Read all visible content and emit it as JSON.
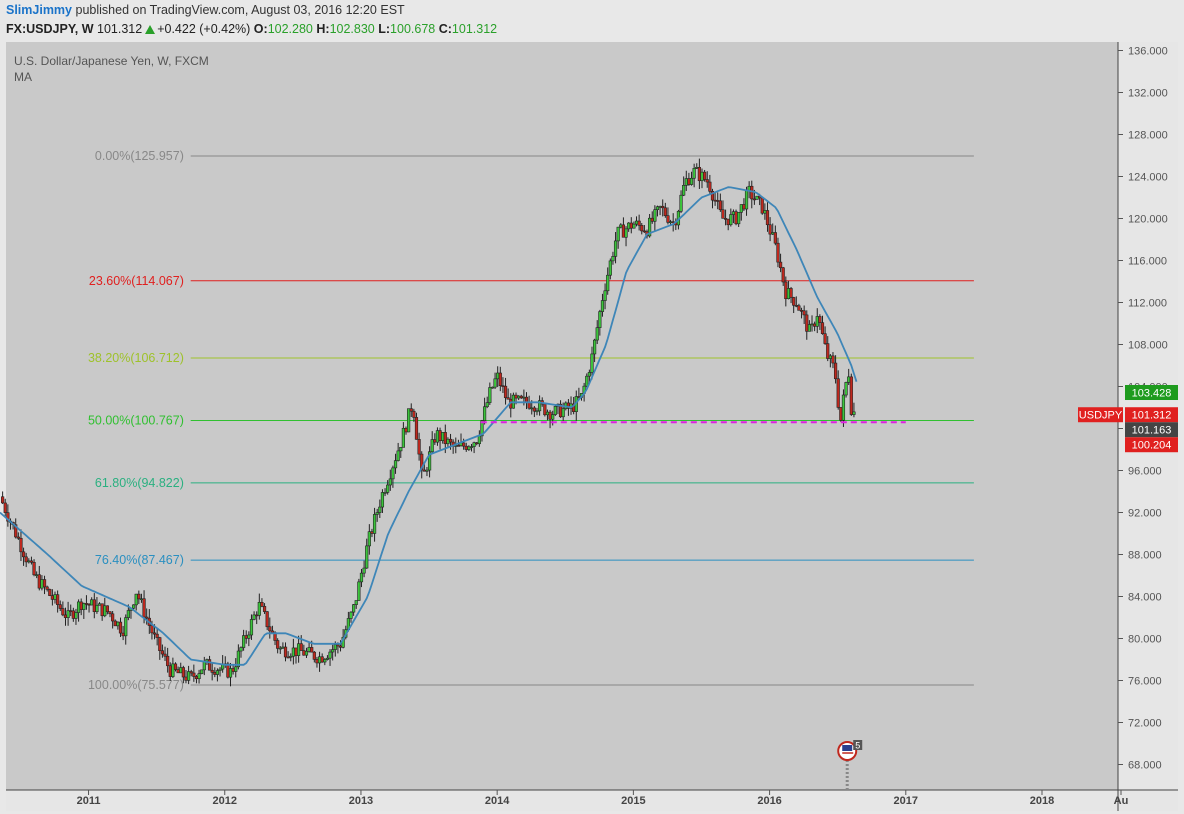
{
  "header": {
    "author": "SlimJimmy",
    "published_text": "published on TradingView.com, August 03, 2016 12:20 EST",
    "symbol": "FX:USDJPY, W",
    "last": "101.312",
    "change": "+0.422 (+0.42%)",
    "open_label": "O:",
    "open": "102.280",
    "high_label": "H:",
    "high": "102.830",
    "low_label": "L:",
    "low": "100.678",
    "close_label": "C:",
    "close": "101.312"
  },
  "chart_data": {
    "type": "candlestick",
    "title": "U.S. Dollar/Japanese Yen, W, FXCM",
    "indicator": "MA",
    "y_ticks": [
      "136.000",
      "132.000",
      "128.000",
      "124.000",
      "120.000",
      "116.000",
      "112.000",
      "108.000",
      "104.000",
      "100.000",
      "96.000",
      "92.000",
      "88.000",
      "84.000",
      "80.000",
      "76.000",
      "72.000",
      "68.000"
    ],
    "ylim": [
      66.2,
      138.2
    ],
    "x_ticks": [
      "2011",
      "2012",
      "2013",
      "2014",
      "2015",
      "2016",
      "2017",
      "2018",
      "Au"
    ],
    "fib_levels": [
      {
        "label": "0.00%(125.957)",
        "price": 125.957,
        "color": "#888888"
      },
      {
        "label": "23.60%(114.067)",
        "price": 114.067,
        "color": "#e0201f"
      },
      {
        "label": "38.20%(106.712)",
        "price": 106.712,
        "color": "#9ec22a"
      },
      {
        "label": "50.00%(100.767)",
        "price": 100.767,
        "color": "#30c030"
      },
      {
        "label": "61.80%(94.822)",
        "price": 94.822,
        "color": "#2ab080"
      },
      {
        "label": "76.40%(87.467)",
        "price": 87.467,
        "color": "#2a8fc0"
      },
      {
        "label": "100.00%(75.577)",
        "price": 75.577,
        "color": "#888888"
      }
    ],
    "support_line": {
      "price": 100.6,
      "color": "#e020e0",
      "style": "dashed"
    },
    "price_labels": [
      {
        "text": "103.428",
        "price": 103.428,
        "color": "#1e9b1e"
      },
      {
        "text": "101.312",
        "price": 101.312,
        "color": "#e0201f",
        "symbol": "USDJPY"
      },
      {
        "text": "101.163",
        "price": 101.163,
        "color": "#444444"
      },
      {
        "text": "100.204",
        "price": 100.204,
        "color": "#e0201f"
      }
    ],
    "price_waypoints": [
      [
        2010.35,
        93.5
      ],
      [
        2010.6,
        86
      ],
      [
        2010.85,
        82
      ],
      [
        2010.95,
        83.5
      ],
      [
        2011.15,
        82.5
      ],
      [
        2011.25,
        80.8
      ],
      [
        2011.35,
        84.5
      ],
      [
        2011.5,
        79.5
      ],
      [
        2011.6,
        77
      ],
      [
        2011.75,
        76.2
      ],
      [
        2011.85,
        77.5
      ],
      [
        2012.05,
        76.8
      ],
      [
        2012.15,
        80
      ],
      [
        2012.25,
        83.2
      ],
      [
        2012.4,
        79
      ],
      [
        2012.55,
        78.8
      ],
      [
        2012.7,
        78.2
      ],
      [
        2012.85,
        79.5
      ],
      [
        2012.95,
        83
      ],
      [
        2013.05,
        89
      ],
      [
        2013.15,
        93.5
      ],
      [
        2013.3,
        99
      ],
      [
        2013.38,
        102.5
      ],
      [
        2013.45,
        95
      ],
      [
        2013.55,
        99.5
      ],
      [
        2013.7,
        98
      ],
      [
        2013.85,
        99
      ],
      [
        2013.95,
        103.5
      ],
      [
        2014.0,
        105
      ],
      [
        2014.08,
        102.5
      ],
      [
        2014.25,
        102.5
      ],
      [
        2014.4,
        101.5
      ],
      [
        2014.55,
        102
      ],
      [
        2014.62,
        103
      ],
      [
        2014.7,
        107
      ],
      [
        2014.78,
        113
      ],
      [
        2014.88,
        118.5
      ],
      [
        2015.0,
        119.5
      ],
      [
        2015.1,
        119
      ],
      [
        2015.2,
        121
      ],
      [
        2015.3,
        119.5
      ],
      [
        2015.38,
        123.5
      ],
      [
        2015.45,
        124.5
      ],
      [
        2015.55,
        123.5
      ],
      [
        2015.65,
        120
      ],
      [
        2015.75,
        120
      ],
      [
        2015.85,
        122.5
      ],
      [
        2015.95,
        121
      ],
      [
        2016.05,
        117
      ],
      [
        2016.12,
        113
      ],
      [
        2016.2,
        112
      ],
      [
        2016.3,
        109
      ],
      [
        2016.35,
        111
      ],
      [
        2016.42,
        107
      ],
      [
        2016.48,
        105.5
      ],
      [
        2016.52,
        100.5
      ],
      [
        2016.55,
        103.5
      ],
      [
        2016.58,
        105.5
      ],
      [
        2016.6,
        102
      ],
      [
        2016.63,
        101.3
      ]
    ],
    "ma_waypoints": [
      [
        2010.35,
        92
      ],
      [
        2010.7,
        88
      ],
      [
        2010.95,
        85
      ],
      [
        2011.3,
        83
      ],
      [
        2011.55,
        80.5
      ],
      [
        2011.75,
        78
      ],
      [
        2012.0,
        77.5
      ],
      [
        2012.15,
        77.5
      ],
      [
        2012.3,
        80.5
      ],
      [
        2012.45,
        80.5
      ],
      [
        2012.65,
        79.5
      ],
      [
        2012.85,
        79.5
      ],
      [
        2013.05,
        84
      ],
      [
        2013.2,
        90
      ],
      [
        2013.35,
        94
      ],
      [
        2013.5,
        97.5
      ],
      [
        2013.7,
        98.5
      ],
      [
        2013.9,
        99.5
      ],
      [
        2014.1,
        102.5
      ],
      [
        2014.3,
        102.5
      ],
      [
        2014.55,
        102
      ],
      [
        2014.65,
        103.5
      ],
      [
        2014.8,
        108
      ],
      [
        2014.95,
        115
      ],
      [
        2015.1,
        118.5
      ],
      [
        2015.3,
        119.5
      ],
      [
        2015.5,
        122
      ],
      [
        2015.7,
        123
      ],
      [
        2015.9,
        122.5
      ],
      [
        2016.05,
        121
      ],
      [
        2016.2,
        117
      ],
      [
        2016.35,
        112.5
      ],
      [
        2016.5,
        109
      ],
      [
        2016.6,
        106
      ],
      [
        2016.65,
        104
      ]
    ],
    "event_marker": {
      "text": "5",
      "x": 2016.57
    }
  }
}
